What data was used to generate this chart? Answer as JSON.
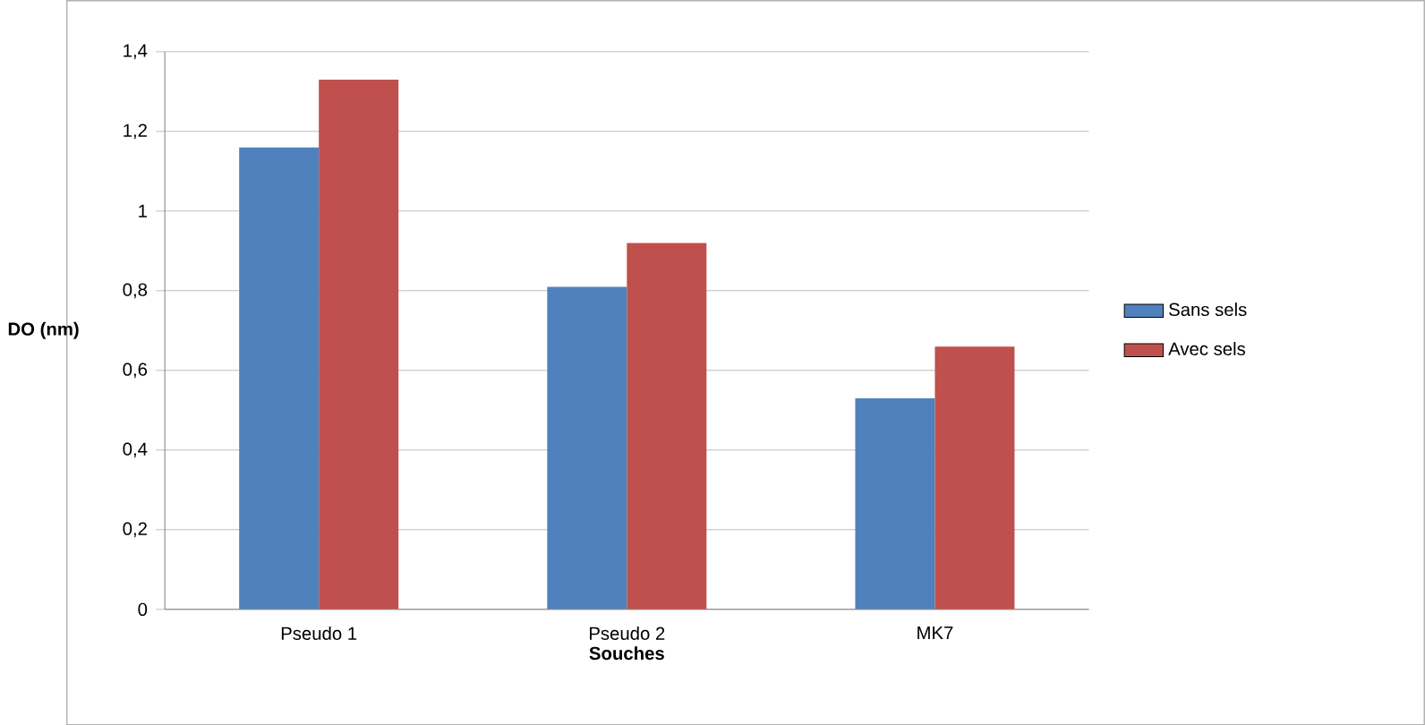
{
  "chart_data": {
    "type": "bar",
    "xlabel": "Souches",
    "ylabel": "DO (nm)",
    "categories": [
      "Pseudo 1",
      "Pseudo 2",
      "MK7"
    ],
    "series": [
      {
        "name": "Sans sels",
        "color": "#4f81bd",
        "values": [
          1.16,
          0.81,
          0.53
        ]
      },
      {
        "name": "Avec sels",
        "color": "#c0504d",
        "values": [
          1.33,
          0.92,
          0.66
        ]
      }
    ],
    "ylim": [
      0,
      1.4
    ],
    "yticks": [
      0,
      {
        "value": 0.2,
        "label": "0,2"
      },
      {
        "value": 0.4,
        "label": "0,4"
      },
      {
        "value": 0.6,
        "label": "0,6"
      },
      {
        "value": 0.8,
        "label": "0,8"
      },
      1,
      {
        "value": 1.2,
        "label": "1,2"
      },
      {
        "value": 1.4,
        "label": "1,4"
      }
    ],
    "grid": "y",
    "legend": "right"
  }
}
